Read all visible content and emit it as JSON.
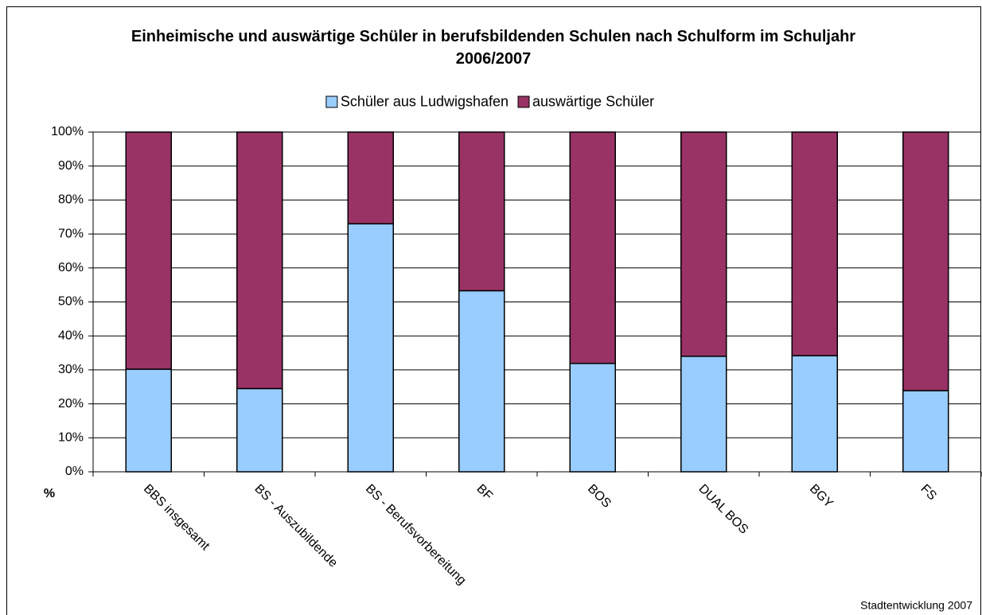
{
  "chart_data": {
    "type": "stacked_bar",
    "title": "Einheimische und auswärtige Schüler in berufsbildenden Schulen nach Schulform im Schuljahr 2006/2007",
    "ylabel": "%",
    "source": "Stadtentwicklung 2007",
    "categories": [
      "BBS insgesamt",
      "BS - Auszubildende",
      "BS - Berufsvorbereitung",
      "BF",
      "BOS",
      "DUAL BOS",
      "BGY",
      "FS"
    ],
    "series": [
      {
        "name": "Schüler aus Ludwigshafen",
        "color": "#99ccff",
        "values": [
          30.2,
          24.5,
          73,
          53.3,
          31.9,
          34,
          34.2,
          23.9
        ]
      },
      {
        "name": "auswärtige Schüler",
        "color": "#993366",
        "values": [
          69.8,
          75.5,
          27,
          46.7,
          68.1,
          66,
          65.8,
          76.1
        ]
      }
    ],
    "ylim": [
      0,
      100
    ],
    "yticks": [
      {
        "value": 0,
        "label": "0%"
      },
      {
        "value": 10,
        "label": "10%"
      },
      {
        "value": 20,
        "label": "20%"
      },
      {
        "value": 30,
        "label": "30%"
      },
      {
        "value": 40,
        "label": "40%"
      },
      {
        "value": 50,
        "label": "50%"
      },
      {
        "value": 60,
        "label": "60%"
      },
      {
        "value": 70,
        "label": "70%"
      },
      {
        "value": 80,
        "label": "80%"
      },
      {
        "value": 90,
        "label": "90%"
      },
      {
        "value": 100,
        "label": "100%"
      }
    ],
    "grid": true,
    "legend": "top"
  }
}
